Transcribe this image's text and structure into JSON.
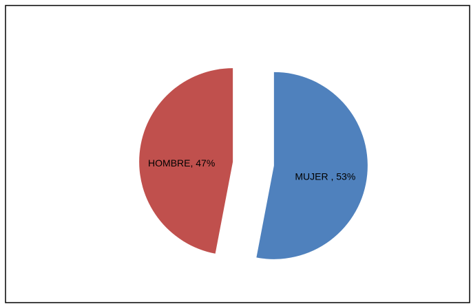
{
  "chart_data": {
    "type": "pie",
    "values": [
      53,
      47
    ],
    "value_labels": [
      "MUJER , 53%",
      "HOMBRE, 47%"
    ],
    "colors": [
      "#4f81bd",
      "#c0504d"
    ]
  }
}
